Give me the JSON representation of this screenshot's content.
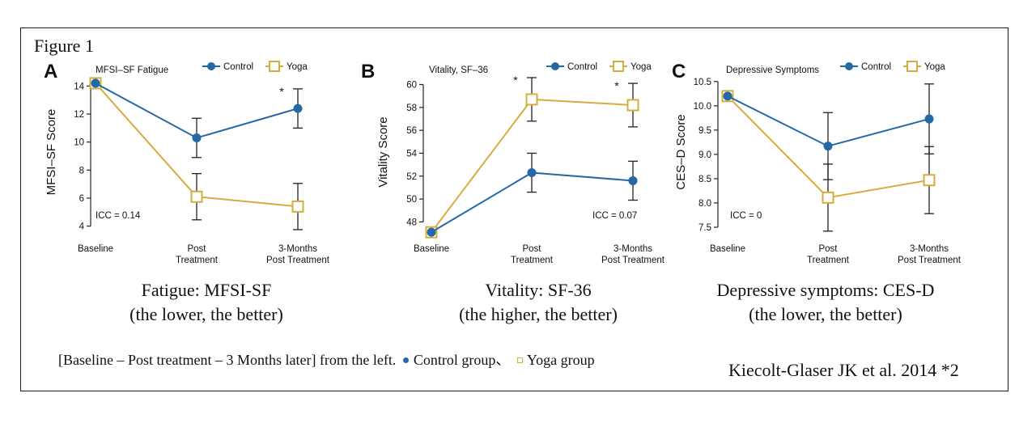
{
  "figure_label": "Figure 1",
  "colors": {
    "control": "#2469a6",
    "yoga": "#d4ad3f",
    "axis": "#222222"
  },
  "chart_data": [
    {
      "panel": "A",
      "type": "line",
      "title": "MFSI–SF Fatigue",
      "ylabel": "MFSI–SF Score",
      "categories": [
        "Baseline",
        "Post\nTreatment",
        "3-Months\nPost Treatment"
      ],
      "yticks": [
        4,
        6,
        8,
        10,
        12,
        14
      ],
      "ylim": [
        3.4,
        14.6
      ],
      "legend": [
        "Control",
        "Yoga"
      ],
      "annotation": "ICC = 0.14",
      "significance": [
        "",
        "",
        "*"
      ],
      "series": [
        {
          "name": "Control",
          "values": [
            14.2,
            10.3,
            12.4
          ],
          "err": [
            0,
            1.4,
            1.4
          ]
        },
        {
          "name": "Yoga",
          "values": [
            14.2,
            6.1,
            5.4
          ],
          "err": [
            0,
            1.65,
            1.65
          ]
        }
      ]
    },
    {
      "panel": "B",
      "type": "line",
      "title": "Vitality, SF–36",
      "ylabel": "Vitality Score",
      "categories": [
        "Baseline",
        "Post\nTreatment",
        "3-Months\nPost Treatment"
      ],
      "yticks": [
        48,
        50,
        52,
        54,
        56,
        58,
        60
      ],
      "ylim": [
        46.9,
        60.6
      ],
      "legend": [
        "Control",
        "Yoga"
      ],
      "annotation": "ICC = 0.07",
      "significance": [
        "",
        "*",
        "*"
      ],
      "series": [
        {
          "name": "Control",
          "values": [
            47.1,
            52.3,
            51.6
          ],
          "err": [
            0,
            1.7,
            1.7
          ]
        },
        {
          "name": "Yoga",
          "values": [
            47.1,
            58.7,
            58.2
          ],
          "err": [
            0,
            1.9,
            1.9
          ]
        }
      ]
    },
    {
      "panel": "C",
      "type": "line",
      "title": "Depressive Symptoms",
      "ylabel": "CES–D Score",
      "categories": [
        "Baseline",
        "Post\nTreatment",
        "3-Months\nPost Treatment"
      ],
      "yticks": [
        7.5,
        8.0,
        8.5,
        9.0,
        9.5,
        10.0,
        10.5
      ],
      "ylim": [
        7.35,
        10.58
      ],
      "legend": [
        "Control",
        "Yoga"
      ],
      "annotation": "ICC = 0",
      "significance": [
        "",
        "",
        ""
      ],
      "series": [
        {
          "name": "Control",
          "values": [
            10.2,
            9.17,
            9.73
          ],
          "err": [
            0,
            0.69,
            0.72
          ]
        },
        {
          "name": "Yoga",
          "values": [
            10.2,
            8.11,
            8.47
          ],
          "err": [
            0,
            0.69,
            0.69
          ]
        }
      ]
    }
  ],
  "captions": {
    "a_line1": "Fatigue: MFSI-SF",
    "a_line2": "(the lower, the better)",
    "b_line1": "Vitality: SF-36",
    "b_line2": "(the higher, the better)",
    "c_line1": "Depressive symptoms: CES-D",
    "c_line2": "(the lower, the better)"
  },
  "footnote": {
    "text": "[Baseline – Post treatment – 3 Months later] from the left.",
    "control_label": "Control group、",
    "yoga_label": "Yoga group"
  },
  "citation": "Kiecolt-Glaser JK et al. 2014 *2"
}
